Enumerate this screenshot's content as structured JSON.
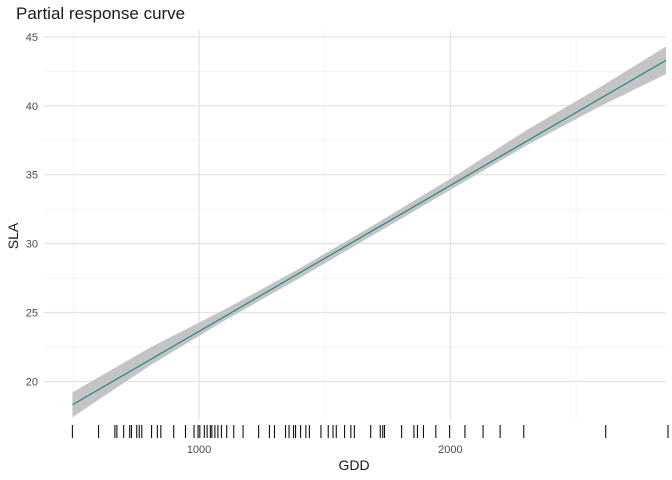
{
  "chart_data": {
    "type": "line",
    "title": "Partial response curve",
    "xlabel": "GDD",
    "ylabel": "SLA",
    "xlim": [
      383,
      2858
    ],
    "ylim": [
      17.2,
      45.5
    ],
    "x_ticks": [
      1000,
      2000
    ],
    "x_minor_ticks": [
      500,
      1500,
      2500
    ],
    "y_ticks": [
      20,
      25,
      30,
      35,
      40,
      45
    ],
    "y_minor_ticks": [
      22.5,
      27.5,
      32.5,
      37.5,
      42.5
    ],
    "grid": true,
    "series": [
      {
        "x": [
          496,
          2858
        ],
        "y": [
          18.3,
          43.3
        ],
        "color": "#2e8b8b",
        "ribbon": {
          "x": [
            496,
            800,
            1100,
            1400,
            1700,
            2000,
            2300,
            2600,
            2858
          ],
          "lower": [
            17.4,
            21.1,
            24.4,
            27.5,
            30.7,
            33.9,
            37.1,
            40.0,
            42.3
          ],
          "upper": [
            19.2,
            22.4,
            25.2,
            28.2,
            31.4,
            34.7,
            38.2,
            41.4,
            44.3
          ],
          "color": "#c4c4c4"
        }
      }
    ],
    "rug_x": [
      496,
      600,
      665,
      673,
      700,
      724,
      731,
      752,
      762,
      772,
      811,
      834,
      848,
      899,
      946,
      980,
      996,
      1003,
      1021,
      1032,
      1045,
      1051,
      1063,
      1075,
      1089,
      1110,
      1138,
      1175,
      1237,
      1280,
      1300,
      1344,
      1358,
      1376,
      1384,
      1404,
      1425,
      1439,
      1485,
      1514,
      1533,
      1546,
      1579,
      1604,
      1618,
      1683,
      1721,
      1731,
      1738,
      1806,
      1855,
      1869,
      1893,
      1942,
      1997,
      2058,
      2130,
      2198,
      2292,
      2618,
      2866
    ]
  }
}
